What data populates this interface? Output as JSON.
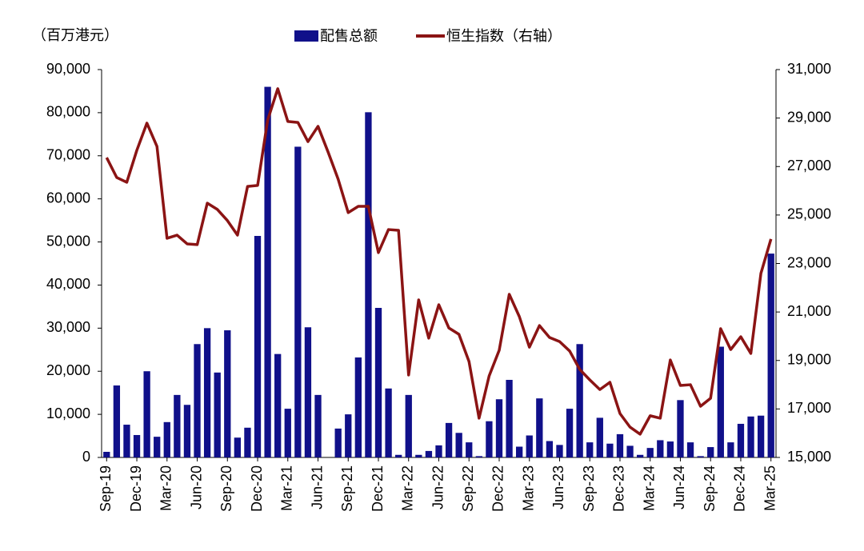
{
  "chart_data": {
    "type": "bar_line",
    "y_axis_label": "（百万港元）",
    "categories": [
      "Sep-19",
      null,
      null,
      "Dec-19",
      null,
      null,
      "Mar-20",
      null,
      null,
      "Jun-20",
      null,
      null,
      "Sep-20",
      null,
      null,
      "Dec-20",
      null,
      null,
      "Mar-21",
      null,
      null,
      "Jun-21",
      null,
      null,
      "Sep-21",
      null,
      null,
      "Dec-21",
      null,
      null,
      "Mar-22",
      null,
      null,
      "Jun-22",
      null,
      null,
      "Sep-22",
      null,
      null,
      "Dec-22",
      null,
      null,
      "Mar-23",
      null,
      null,
      "Jun-23",
      null,
      null,
      "Sep-23",
      null,
      null,
      "Dec-23",
      null,
      null,
      "Mar-24",
      null,
      null,
      "Jun-24",
      null,
      null,
      "Sep-24",
      null,
      null,
      "Dec-24",
      null,
      null,
      "Mar-25"
    ],
    "series": [
      {
        "name": "配售总额",
        "color": "#10108a",
        "type": "bar",
        "values": [
          1300,
          16700,
          7600,
          5200,
          20000,
          4800,
          8200,
          14500,
          12200,
          26300,
          30000,
          19700,
          29500,
          4600,
          6900,
          51400,
          86000,
          24000,
          11300,
          72100,
          30200,
          14500,
          0,
          6700,
          10000,
          23200,
          80100,
          34700,
          16000,
          600,
          14500,
          600,
          1500,
          2800,
          8000,
          5700,
          3500,
          300,
          8400,
          13500,
          18000,
          2500,
          5100,
          13700,
          3800,
          2900,
          11300,
          26300,
          3500,
          9200,
          3200,
          5400,
          2700,
          600,
          2200,
          4000,
          3700,
          13300,
          3500,
          300,
          2400,
          25700,
          3500,
          7800,
          9500,
          9700,
          47300
        ]
      },
      {
        "name": "恒生指数（右轴）",
        "color": "#8b1414",
        "type": "line",
        "axis": "y2",
        "values": [
          27370,
          26550,
          26350,
          27670,
          28790,
          27830,
          24040,
          24170,
          23810,
          23780,
          25490,
          25230,
          24770,
          24170,
          26180,
          26220,
          28920,
          30210,
          28860,
          28820,
          28030,
          28660,
          27600,
          26480,
          25100,
          25360,
          25360,
          23450,
          24400,
          24370,
          18400,
          21500,
          19920,
          21300,
          20340,
          20080,
          18960,
          16620,
          18360,
          19420,
          21730,
          20810,
          19550,
          20440,
          19950,
          19780,
          19390,
          18630,
          18200,
          17800,
          18100,
          16810,
          16250,
          15960,
          16720,
          16620,
          19020,
          17970,
          18000,
          17110,
          17440,
          20310,
          19450,
          19980,
          19290,
          22590,
          24010
        ]
      }
    ],
    "ylim": [
      0,
      90000
    ],
    "yticks": [
      0,
      {
        "value": 10000,
        "label": "10,000"
      },
      {
        "value": 20000,
        "label": "20,000"
      },
      {
        "value": 30000,
        "label": "30,000"
      },
      {
        "value": 40000,
        "label": "40,000"
      },
      {
        "value": 50000,
        "label": "50,000"
      },
      {
        "value": 60000,
        "label": "60,000"
      },
      {
        "value": 70000,
        "label": "70,000"
      },
      {
        "value": 80000,
        "label": "80,000"
      },
      {
        "value": 90000,
        "label": "90,000"
      }
    ],
    "y2lim": [
      15000,
      31000
    ],
    "y2ticks": [
      {
        "value": 15000,
        "label": "15,000"
      },
      {
        "value": 17000,
        "label": "17,000"
      },
      {
        "value": 19000,
        "label": "19,000"
      },
      {
        "value": 21000,
        "label": "21,000"
      },
      {
        "value": 23000,
        "label": "23,000"
      },
      {
        "value": 25000,
        "label": "25,000"
      },
      {
        "value": 27000,
        "label": "27,000"
      },
      {
        "value": 29000,
        "label": "29,000"
      },
      {
        "value": 31000,
        "label": "31,000"
      }
    ],
    "legend": "top"
  }
}
